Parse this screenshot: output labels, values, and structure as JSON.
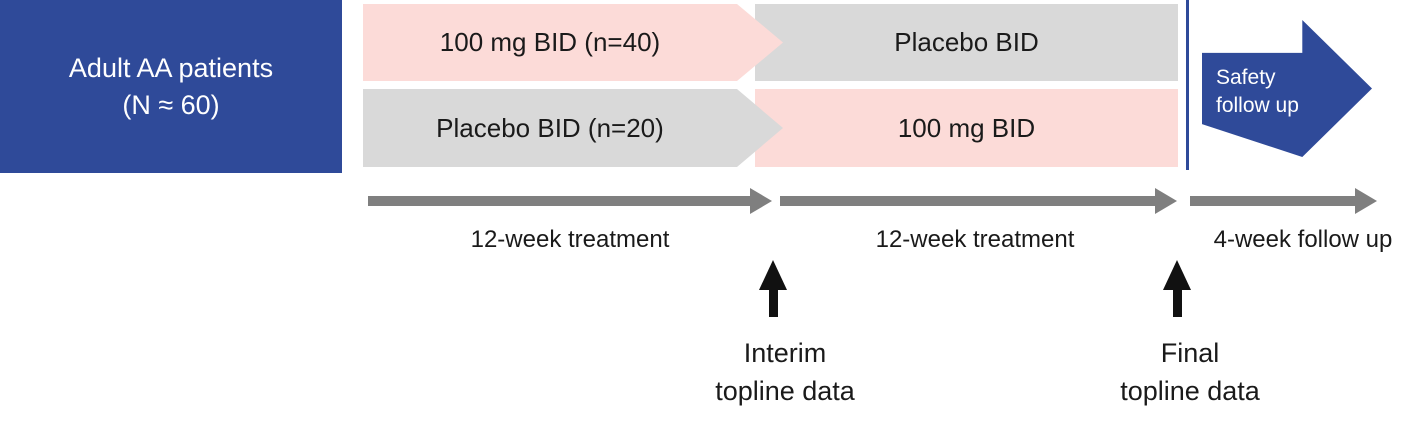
{
  "colors": {
    "blue": "#2F4A99",
    "pink": "#FCDBD8",
    "gray": "#D9D9D9",
    "timeline-gray": "#7F7F7F",
    "ink": "#1A1A1A"
  },
  "patient_box": {
    "line1": "Adult AA patients",
    "line2": "(N ≈ 60)"
  },
  "arms": [
    {
      "phase1": {
        "label": "100 mg BID (n=40)",
        "color": "pink"
      },
      "phase2": {
        "label": "Placebo BID",
        "color": "gray"
      }
    },
    {
      "phase1": {
        "label": "Placebo BID (n=20)",
        "color": "gray"
      },
      "phase2": {
        "label": "100 mg BID",
        "color": "pink"
      }
    }
  ],
  "safety_arrow": {
    "line1": "Safety",
    "line2": "follow up"
  },
  "timeline": {
    "segments": [
      {
        "label": "12-week treatment"
      },
      {
        "label": "12-week treatment"
      },
      {
        "label": "4-week follow up"
      }
    ]
  },
  "milestones": [
    {
      "line1": "Interim",
      "line2": "topline data"
    },
    {
      "line1": "Final",
      "line2": "topline data"
    }
  ]
}
